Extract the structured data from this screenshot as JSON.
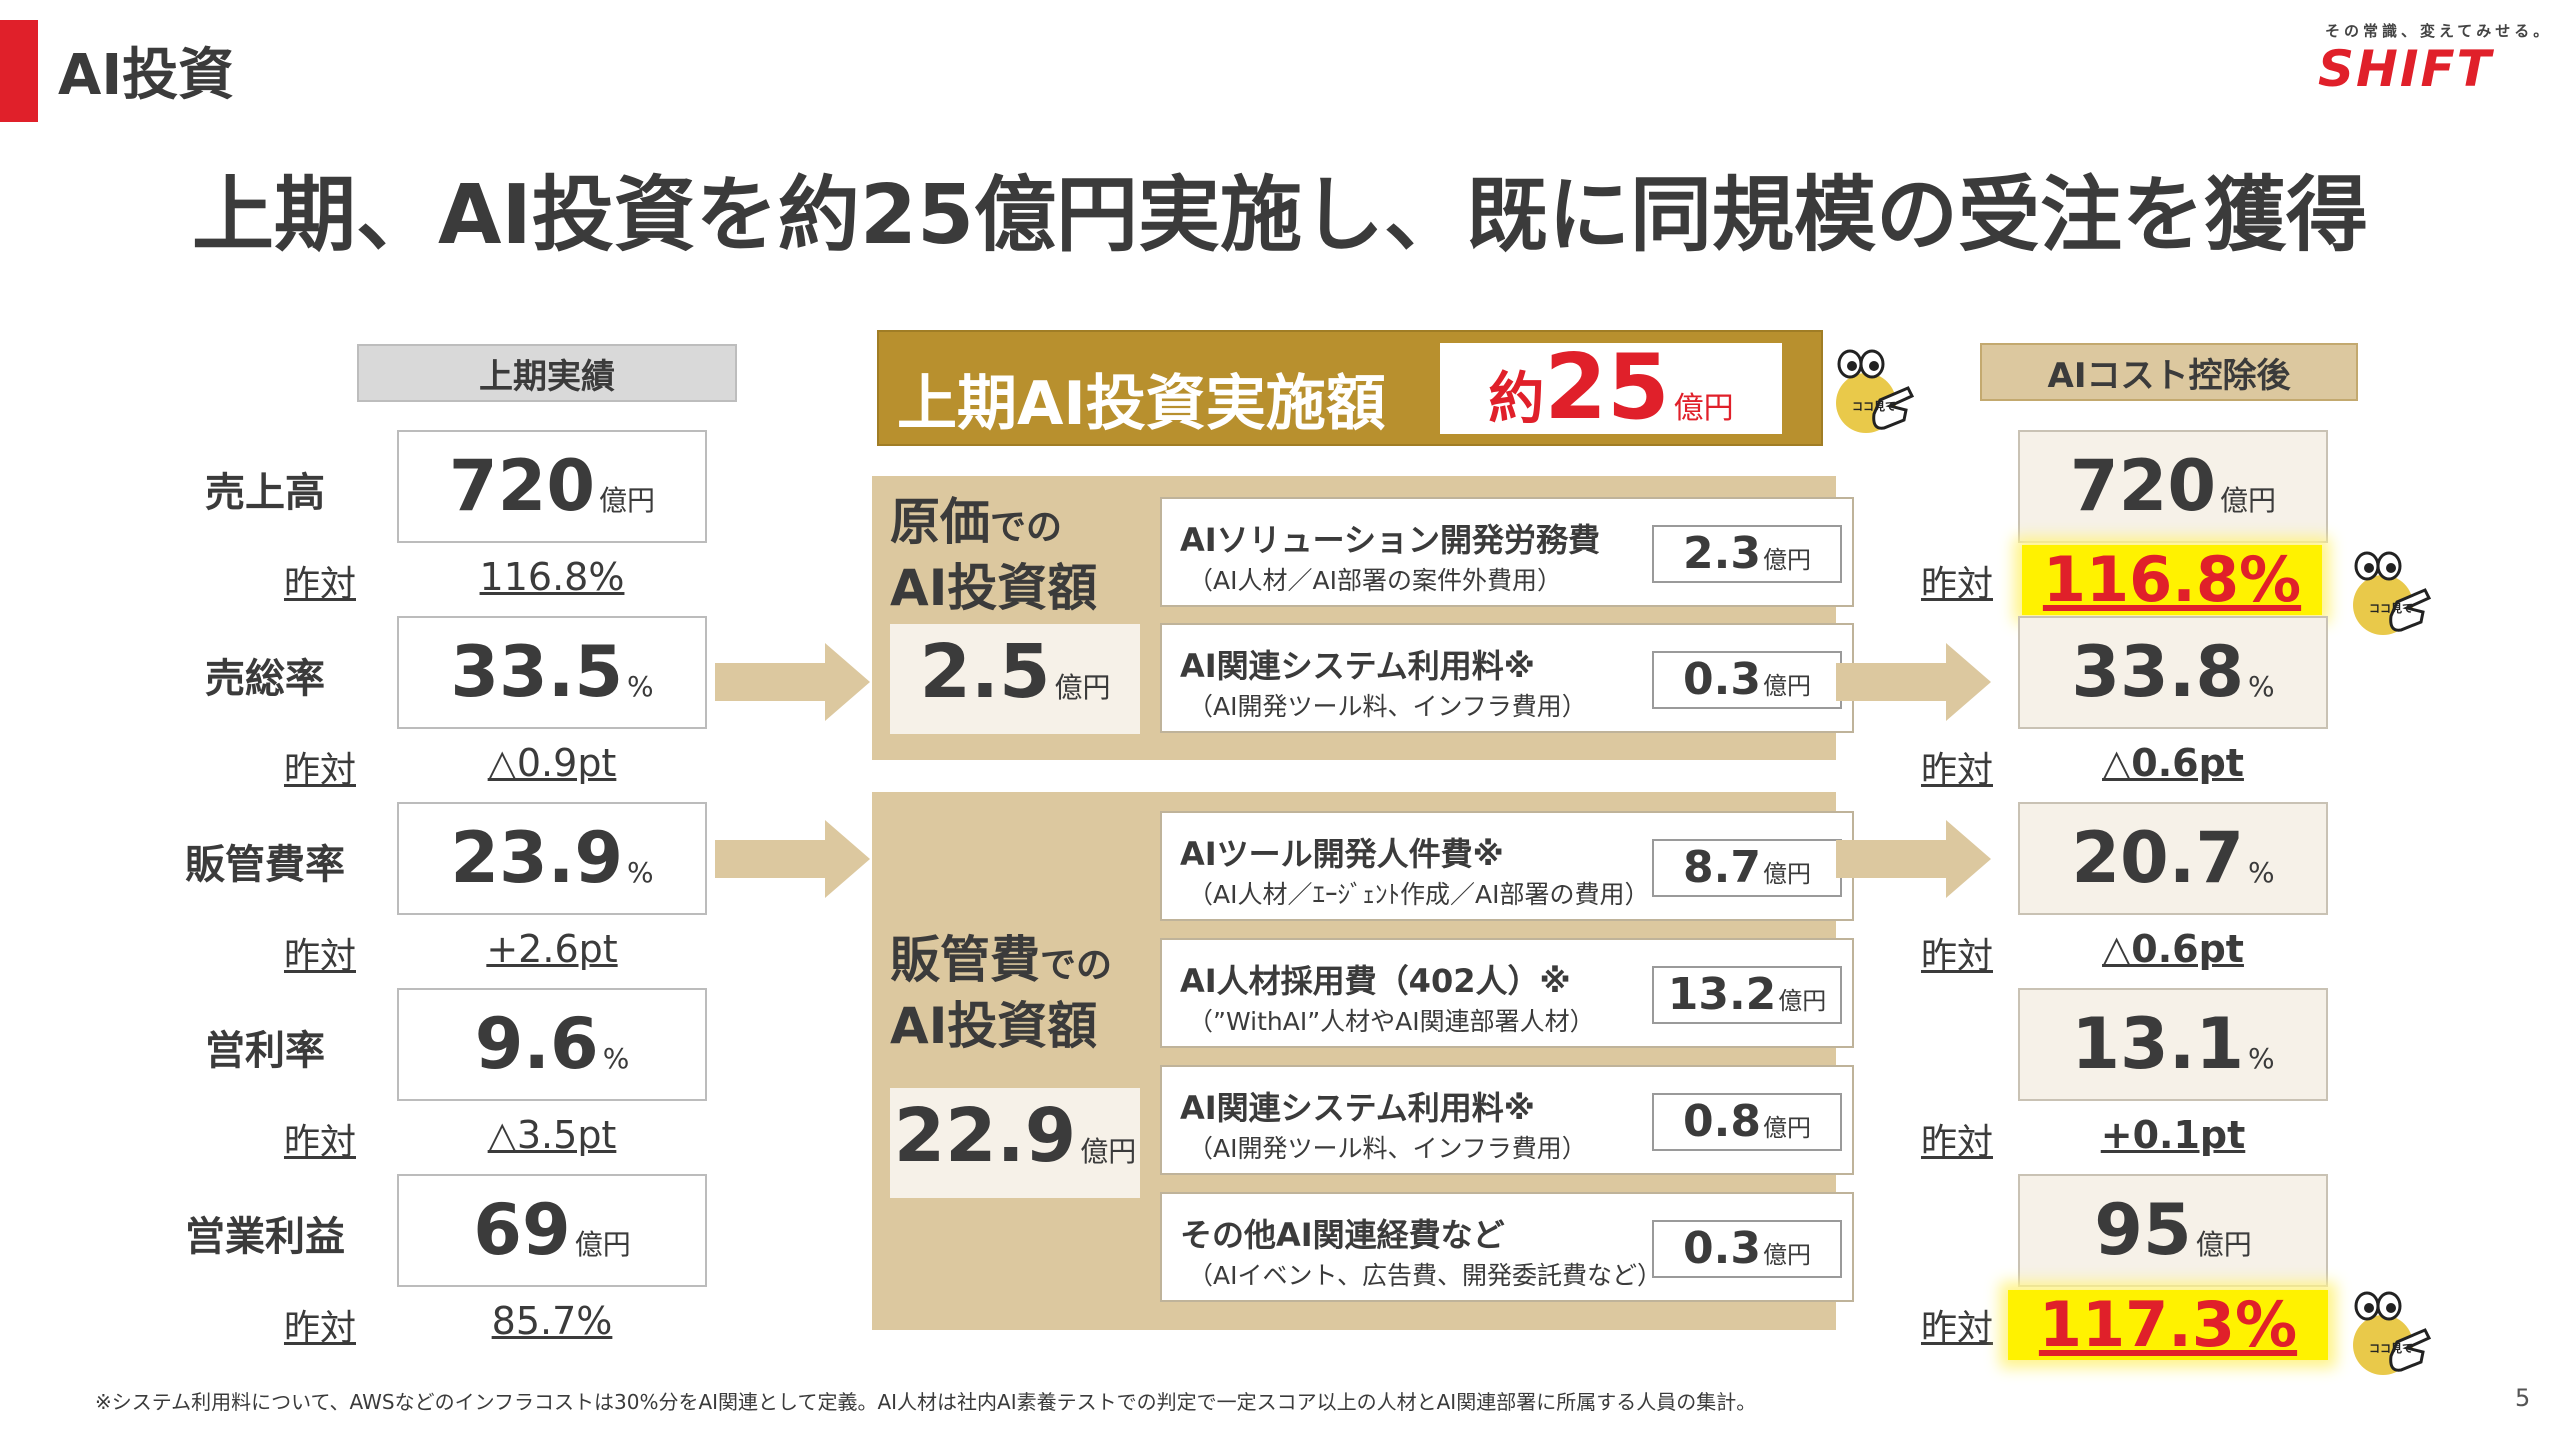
{
  "header": {
    "section_title": "AI投資",
    "tagline": "その常識、変えてみせる。",
    "logo": "SHIFT",
    "headline": "上期、AI投資を約25億円実施し、既に同規模の受注を獲得"
  },
  "left": {
    "header": "上期実績",
    "yoy_label": "昨対",
    "rows": [
      {
        "label": "売上高",
        "value": "720",
        "unit": "億円",
        "yoy": "116.8%"
      },
      {
        "label": "売総率",
        "value": "33.5",
        "unit": "%",
        "yoy": "△0.9pt"
      },
      {
        "label": "販管費率",
        "value": "23.9",
        "unit": "%",
        "yoy": "+2.6pt"
      },
      {
        "label": "営利率",
        "value": "9.6",
        "unit": "%",
        "yoy": "△3.5pt"
      },
      {
        "label": "営業利益",
        "value": "69",
        "unit": "億円",
        "yoy": "85.7%"
      }
    ]
  },
  "banner": {
    "title": "上期AI投資実施額",
    "approx": "約",
    "value": "25",
    "unit": "億円"
  },
  "cost_panel": {
    "title_main": "原価",
    "title_particle": "での",
    "title_line2": "AI投資額",
    "total": "2.5",
    "unit": "億円",
    "items": [
      {
        "title": "AIソリューション開発労務費",
        "sub": "（AI人材／AI部署の案件外費用）",
        "value": "2.3",
        "unit": "億円"
      },
      {
        "title": "AI関連システム利用料※",
        "sub": "（AI開発ツール料、インフラ費用）",
        "value": "0.3",
        "unit": "億円"
      }
    ]
  },
  "sga_panel": {
    "title_main": "販管費",
    "title_particle": "での",
    "title_line2": "AI投資額",
    "total": "22.9",
    "unit": "億円",
    "items": [
      {
        "title": "AIツール開発人件費※",
        "sub": "（AI人材／ｴｰｼﾞｪﾝﾄ作成／AI部署の費用）",
        "value": "8.7",
        "unit": "億円"
      },
      {
        "title": "AI人材採用費（402人）※",
        "sub": "（”WithAI”人材やAI関連部署人材）",
        "value": "13.2",
        "unit": "億円"
      },
      {
        "title": "AI関連システム利用料※",
        "sub": "（AI開発ツール料、インフラ費用）",
        "value": "0.8",
        "unit": "億円"
      },
      {
        "title": "その他AI関連経費など",
        "sub": "（AIイベント、広告費、開発委託費など）",
        "value": "0.3",
        "unit": "億円"
      }
    ]
  },
  "right": {
    "header": "AIコスト控除後",
    "yoy_label": "昨対",
    "rows": [
      {
        "value": "720",
        "unit": "億円",
        "yoy": "116.8%"
      },
      {
        "value": "33.8",
        "unit": "%",
        "yoy": "△0.6pt"
      },
      {
        "value": "20.7",
        "unit": "%",
        "yoy": "△0.6pt"
      },
      {
        "value": "13.1",
        "unit": "%",
        "yoy": "+0.1pt"
      },
      {
        "value": "95",
        "unit": "億円",
        "yoy": "117.3%"
      }
    ]
  },
  "mascot_text": "ココ見て",
  "footnote": "※システム利用料について、AWSなどのインフラコストは30%分をAI関連として定義。AI人材は社内AI素養テストでの判定で一定スコア以上の人材とAI関連部署に所属する人員の集計。",
  "page_number": "5",
  "colors": {
    "accent_red": "#e0202a",
    "gold": "#b8902e",
    "tan": "#dcc89f",
    "highlight": "#fff200"
  }
}
